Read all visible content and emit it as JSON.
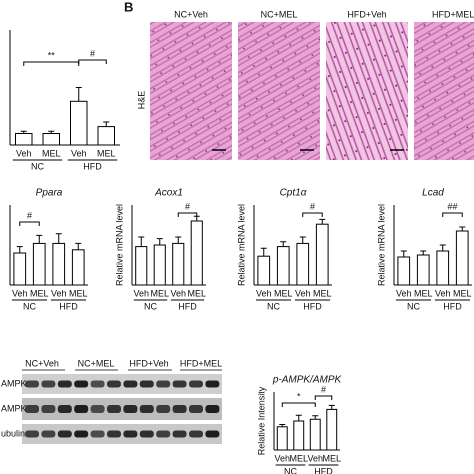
{
  "chart_data": [
    {
      "type": "bar",
      "categories": [
        "Veh",
        "MEL",
        "Veh",
        "MEL"
      ],
      "groups": [
        "NC",
        "HFD"
      ],
      "values": [
        0.25,
        0.25,
        0.95,
        0.4
      ],
      "errors": [
        0.05,
        0.05,
        0.3,
        0.1
      ],
      "annotations": [
        "**",
        "#"
      ],
      "color": "#ffffff",
      "ylim": [
        0,
        2.5
      ]
    },
    {
      "type": "bar",
      "title": "Ppara",
      "categories": [
        "Veh",
        "MEL",
        "Veh",
        "MEL"
      ],
      "groups": [
        "NC",
        "HFD"
      ],
      "values": [
        10,
        13,
        13,
        11
      ],
      "errors": [
        2,
        2.5,
        3,
        2
      ],
      "annotations": [
        "#"
      ],
      "color": "#ffffff",
      "ylim": [
        0,
        25
      ]
    },
    {
      "type": "bar",
      "title": "Acox1",
      "y_label": "Relative mRNA level",
      "categories": [
        "Veh",
        "MEL",
        "Veh",
        "MEL"
      ],
      "groups": [
        "NC",
        "HFD"
      ],
      "values": [
        12,
        12.5,
        13,
        20
      ],
      "errors": [
        3,
        2,
        2,
        1.5
      ],
      "annotations": [
        "#"
      ],
      "color": "#ffffff",
      "ylim": [
        0,
        25
      ]
    },
    {
      "type": "bar",
      "title": "Cpt1α",
      "y_label": "Relative mRNA level",
      "categories": [
        "Veh",
        "MEL",
        "Veh",
        "MEL"
      ],
      "groups": [
        "NC",
        "HFD"
      ],
      "values": [
        9,
        12,
        13,
        19
      ],
      "errors": [
        2.5,
        1.5,
        2,
        1.5
      ],
      "annotations": [
        "#"
      ],
      "color": "#ffffff",
      "ylim": [
        0,
        25
      ]
    },
    {
      "type": "bar",
      "title": "Lcad",
      "y_label": "Relative mRNA level",
      "categories": [
        "Veh",
        "MEL",
        "Veh",
        "MEL"
      ],
      "groups": [
        "NC",
        "HFD"
      ],
      "values": [
        7,
        7.5,
        8.5,
        13.5
      ],
      "errors": [
        1.5,
        1,
        1.5,
        1
      ],
      "annotations": [
        "##"
      ],
      "color": "#ffffff",
      "ylim": [
        0,
        20
      ]
    },
    {
      "type": "bar",
      "title": "p-AMPK/AMPK",
      "y_label": "Relative Intensity",
      "categories": [
        "Veh",
        "MEL",
        "Veh",
        "MEL"
      ],
      "groups": [
        "NC",
        "HFD"
      ],
      "values": [
        4,
        5,
        5.3,
        7
      ],
      "errors": [
        0.4,
        1,
        0.6,
        0.7
      ],
      "annotations": [
        "*",
        "#"
      ],
      "color": "#ffffff",
      "ylim": [
        0,
        10
      ]
    }
  ],
  "histology": {
    "panel": "B",
    "stain": "H&E",
    "labels": [
      "NC+Veh",
      "NC+MEL",
      "HFD+Veh",
      "HFD+MEL"
    ]
  },
  "blot": {
    "labels": [
      "NC+Veh",
      "NC+MEL",
      "HFD+Veh",
      "HFD+MEL"
    ],
    "rows": [
      "AMPK",
      "AMPK",
      "ubulin"
    ]
  }
}
